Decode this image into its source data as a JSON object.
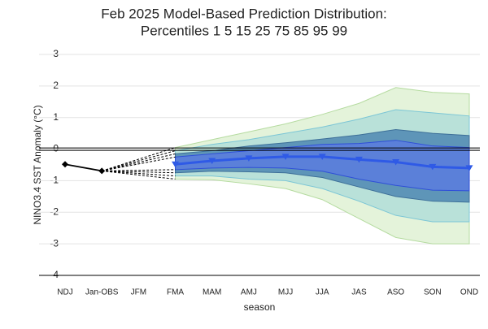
{
  "chart_data": {
    "type": "fan",
    "title": [
      "Feb 2025 Model-Based Prediction Distribution:",
      "Percentiles 1 5 15 25 75 85 95 99"
    ],
    "xlabel": "season",
    "ylabel": "NINO3.4 SST Anomaly (°C)",
    "categories": [
      "NDJ",
      "Jan-OBS",
      "JFM",
      "FMA",
      "MAM",
      "AMJ",
      "MJJ",
      "JJA",
      "JAS",
      "ASO",
      "SON",
      "OND"
    ],
    "ylim": [
      -4,
      3
    ],
    "yticks": [
      -4,
      -3,
      -2,
      -1,
      0,
      1,
      2,
      3
    ],
    "grid": true,
    "hline": 0,
    "observed": {
      "color": "#000000",
      "values": [
        -0.48,
        -0.69,
        null,
        null,
        null,
        null,
        null,
        null,
        null,
        null,
        null,
        null
      ]
    },
    "bands": [
      {
        "color": "#e4f3da",
        "edge": "#b5dba0",
        "lower": [
          null,
          null,
          null,
          -0.95,
          -0.97,
          -1.1,
          -1.25,
          -1.6,
          -2.2,
          -2.8,
          -3.0,
          -3.0
        ],
        "upper": [
          null,
          null,
          null,
          0.05,
          0.3,
          0.55,
          0.8,
          1.1,
          1.45,
          1.95,
          1.8,
          1.75
        ]
      },
      {
        "color": "#b9e1d9",
        "edge": "#7cc6d6",
        "lower": [
          null,
          null,
          null,
          -0.85,
          -0.85,
          -0.95,
          -1.0,
          -1.25,
          -1.65,
          -2.1,
          -2.3,
          -2.3
        ],
        "upper": [
          null,
          null,
          null,
          -0.05,
          0.15,
          0.3,
          0.5,
          0.7,
          0.95,
          1.25,
          1.15,
          1.05
        ]
      },
      {
        "color": "#5e95b8",
        "edge": "#3d6f98",
        "lower": [
          null,
          null,
          null,
          -0.75,
          -0.7,
          -0.72,
          -0.75,
          -0.9,
          -1.2,
          -1.5,
          -1.65,
          -1.68
        ],
        "upper": [
          null,
          null,
          null,
          -0.15,
          -0.05,
          0.1,
          0.2,
          0.32,
          0.45,
          0.62,
          0.5,
          0.43
        ]
      },
      {
        "color": "#5b80d9",
        "edge": "#2f4fd8",
        "lower": [
          null,
          null,
          null,
          -0.65,
          -0.6,
          -0.58,
          -0.6,
          -0.7,
          -0.95,
          -1.15,
          -1.3,
          -1.32
        ],
        "upper": [
          null,
          null,
          null,
          -0.25,
          -0.15,
          -0.05,
          0.05,
          0.15,
          0.18,
          0.28,
          0.1,
          0.05
        ]
      }
    ],
    "median": {
      "color": "#2f5ae6",
      "values": [
        null,
        null,
        null,
        -0.48,
        -0.37,
        -0.29,
        -0.24,
        -0.24,
        -0.33,
        -0.41,
        -0.56,
        -0.6
      ]
    }
  }
}
